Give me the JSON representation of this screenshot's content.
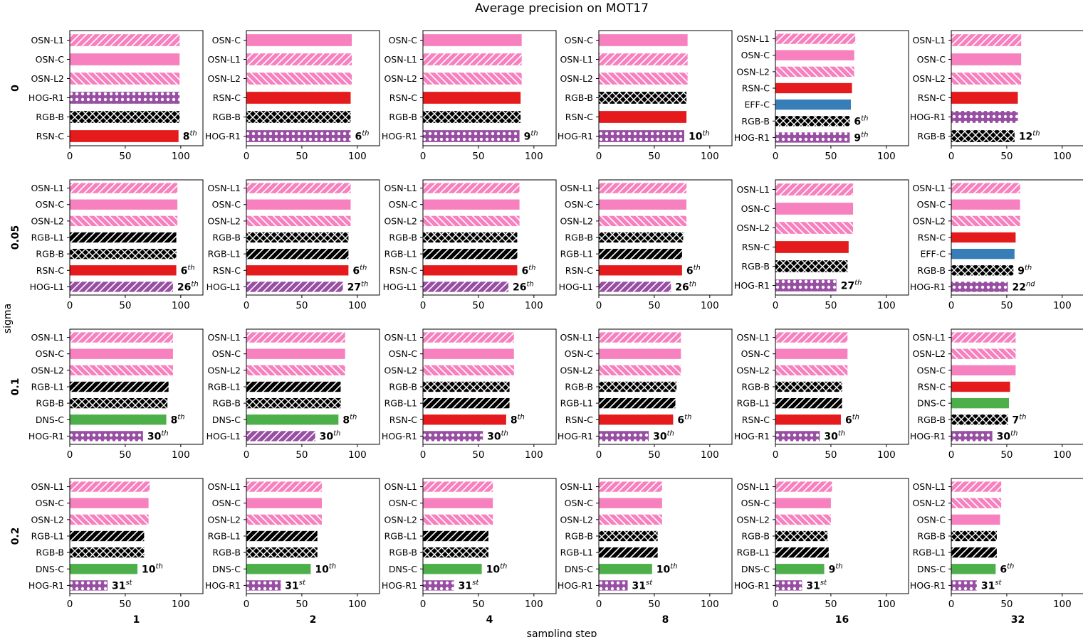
{
  "title": "Average precision on MOT17",
  "xlabel": "sampling step",
  "ylabel": "sigma",
  "colors": {
    "OSN": "#f781bf",
    "RSN": "#e41a1c",
    "EFF": "#377eb8",
    "DNS": "#4daf4a",
    "RGB": "#000000",
    "HOG": "#984ea3"
  },
  "chart_data": {
    "type": "bar",
    "orientation": "horizontal",
    "grid": false,
    "xlim": [
      0,
      120
    ],
    "xticks": [
      0,
      50,
      100
    ],
    "columns": [
      "1",
      "2",
      "4",
      "8",
      "16",
      "32"
    ],
    "rows": [
      "0",
      "0.05",
      "0.1",
      "0.2"
    ],
    "panels": [
      [
        {
          "labels": [
            "OSN-L1",
            "OSN-C",
            "OSN-L2",
            "HOG-R1",
            "RGB-B",
            "RSN-C"
          ],
          "values": [
            99,
            99,
            99,
            99,
            99,
            98
          ],
          "rank": "8",
          "suffix": "th"
        },
        {
          "labels": [
            "OSN-C",
            "OSN-L1",
            "OSN-L2",
            "RSN-C",
            "RGB-B",
            "HOG-R1"
          ],
          "values": [
            95,
            95,
            95,
            94,
            94,
            94
          ],
          "rank": "6",
          "suffix": "th"
        },
        {
          "labels": [
            "OSN-C",
            "OSN-L1",
            "OSN-L2",
            "RSN-C",
            "RGB-B",
            "HOG-R1"
          ],
          "values": [
            89,
            89,
            89,
            88,
            88,
            87
          ],
          "rank": "9",
          "suffix": "th"
        },
        {
          "labels": [
            "OSN-C",
            "OSN-L1",
            "OSN-L2",
            "RGB-B",
            "RSN-C",
            "HOG-R1"
          ],
          "values": [
            80,
            80,
            80,
            79,
            79,
            77
          ],
          "rank": "10",
          "suffix": "th"
        },
        {
          "labels": [
            "OSN-L1",
            "OSN-C",
            "OSN-L2",
            "RSN-C",
            "EFF-C",
            "RGB-B",
            "HOG-R1"
          ],
          "values": [
            72,
            71,
            71,
            69,
            68,
            67,
            67
          ],
          "rank": "9",
          "suffix": "th",
          "extra": {
            "index": 5,
            "rank": "6",
            "suffix": "th"
          }
        },
        {
          "labels": [
            "OSN-L1",
            "OSN-C",
            "OSN-L2",
            "RSN-C",
            "HOG-R1",
            "RGB-B"
          ],
          "values": [
            63,
            63,
            63,
            60,
            60,
            57
          ],
          "rank": "12",
          "suffix": "th"
        }
      ],
      [
        {
          "labels": [
            "OSN-L1",
            "OSN-C",
            "OSN-L2",
            "RGB-L1",
            "RGB-B",
            "RSN-C",
            "HOG-L1"
          ],
          "values": [
            97,
            97,
            97,
            96,
            96,
            96,
            93
          ],
          "rank": "26",
          "suffix": "th",
          "extra": {
            "index": 5,
            "rank": "6",
            "suffix": "th"
          }
        },
        {
          "labels": [
            "OSN-L1",
            "OSN-C",
            "OSN-L2",
            "RGB-B",
            "RGB-L1",
            "RSN-C",
            "HOG-L1"
          ],
          "values": [
            94,
            94,
            94,
            92,
            92,
            92,
            87
          ],
          "rank": "27",
          "suffix": "th",
          "extra": {
            "index": 5,
            "rank": "6",
            "suffix": "th"
          }
        },
        {
          "labels": [
            "OSN-L1",
            "OSN-C",
            "OSN-L2",
            "RGB-B",
            "RGB-L1",
            "RSN-C",
            "HOG-L1"
          ],
          "values": [
            87,
            87,
            87,
            85,
            85,
            85,
            77
          ],
          "rank": "26",
          "suffix": "th",
          "extra": {
            "index": 5,
            "rank": "6",
            "suffix": "th"
          }
        },
        {
          "labels": [
            "OSN-L1",
            "OSN-C",
            "OSN-L2",
            "RGB-B",
            "RGB-L1",
            "RSN-C",
            "HOG-L1"
          ],
          "values": [
            79,
            79,
            79,
            76,
            75,
            75,
            65
          ],
          "rank": "26",
          "suffix": "th",
          "extra": {
            "index": 5,
            "rank": "6",
            "suffix": "th"
          }
        },
        {
          "labels": [
            "OSN-L1",
            "OSN-C",
            "OSN-L2",
            "RSN-C",
            "RGB-B",
            "HOG-R1"
          ],
          "values": [
            70,
            70,
            70,
            66,
            65,
            55
          ],
          "rank": "27",
          "suffix": "th"
        },
        {
          "labels": [
            "OSN-L1",
            "OSN-C",
            "OSN-L2",
            "RSN-C",
            "EFF-C",
            "RGB-B",
            "HOG-R1"
          ],
          "values": [
            62,
            62,
            62,
            58,
            57,
            56,
            51
          ],
          "rank": "22",
          "suffix": "nd",
          "extra": {
            "index": 5,
            "rank": "9",
            "suffix": "th"
          }
        }
      ],
      [
        {
          "labels": [
            "OSN-L1",
            "OSN-C",
            "OSN-L2",
            "RGB-L1",
            "RGB-B",
            "DNS-C",
            "HOG-R1"
          ],
          "values": [
            93,
            93,
            93,
            89,
            88,
            87,
            66
          ],
          "rank": "30",
          "suffix": "th",
          "extra": {
            "index": 5,
            "rank": "8",
            "suffix": "th"
          }
        },
        {
          "labels": [
            "OSN-L1",
            "OSN-C",
            "OSN-L2",
            "RGB-L1",
            "RGB-B",
            "DNS-C",
            "HOG-L1"
          ],
          "values": [
            89,
            89,
            89,
            85,
            85,
            83,
            62
          ],
          "rank": "30",
          "suffix": "th",
          "extra": {
            "index": 5,
            "rank": "8",
            "suffix": "th"
          }
        },
        {
          "labels": [
            "OSN-L1",
            "OSN-C",
            "OSN-L2",
            "RGB-B",
            "RGB-L1",
            "RSN-C",
            "HOG-R1"
          ],
          "values": [
            82,
            82,
            82,
            78,
            78,
            75,
            54
          ],
          "rank": "30",
          "suffix": "th",
          "extra": {
            "index": 5,
            "rank": "8",
            "suffix": "th"
          }
        },
        {
          "labels": [
            "OSN-L1",
            "OSN-C",
            "OSN-L2",
            "RGB-B",
            "RGB-L1",
            "RSN-C",
            "HOG-R1"
          ],
          "values": [
            74,
            74,
            74,
            70,
            69,
            67,
            45
          ],
          "rank": "30",
          "suffix": "th",
          "extra": {
            "index": 5,
            "rank": "6",
            "suffix": "th"
          }
        },
        {
          "labels": [
            "OSN-L1",
            "OSN-C",
            "OSN-L2",
            "RGB-B",
            "RGB-L1",
            "RSN-C",
            "HOG-R1"
          ],
          "values": [
            65,
            65,
            65,
            60,
            60,
            59,
            40
          ],
          "rank": "30",
          "suffix": "th",
          "extra": {
            "index": 5,
            "rank": "6",
            "suffix": "th"
          }
        },
        {
          "labels": [
            "OSN-L1",
            "OSN-L2",
            "OSN-C",
            "RSN-C",
            "DNS-C",
            "RGB-B",
            "HOG-R1"
          ],
          "values": [
            58,
            58,
            58,
            53,
            52,
            51,
            37
          ],
          "rank": "30",
          "suffix": "th",
          "extra": {
            "index": 5,
            "rank": "7",
            "suffix": "th"
          }
        }
      ],
      [
        {
          "labels": [
            "OSN-L1",
            "OSN-C",
            "OSN-L2",
            "RGB-L1",
            "RGB-B",
            "DNS-C",
            "HOG-R1"
          ],
          "values": [
            72,
            71,
            71,
            67,
            67,
            61,
            34
          ],
          "rank": "31",
          "suffix": "st",
          "extra": {
            "index": 5,
            "rank": "10",
            "suffix": "th"
          }
        },
        {
          "labels": [
            "OSN-L1",
            "OSN-C",
            "OSN-L2",
            "RGB-L1",
            "RGB-B",
            "DNS-C",
            "HOG-R1"
          ],
          "values": [
            68,
            68,
            68,
            64,
            64,
            58,
            31
          ],
          "rank": "31",
          "suffix": "st",
          "extra": {
            "index": 5,
            "rank": "10",
            "suffix": "th"
          }
        },
        {
          "labels": [
            "OSN-L1",
            "OSN-C",
            "OSN-L2",
            "RGB-L1",
            "RGB-B",
            "DNS-C",
            "HOG-R1"
          ],
          "values": [
            63,
            63,
            63,
            59,
            59,
            53,
            28
          ],
          "rank": "31",
          "suffix": "st",
          "extra": {
            "index": 5,
            "rank": "10",
            "suffix": "th"
          }
        },
        {
          "labels": [
            "OSN-L1",
            "OSN-C",
            "OSN-L2",
            "RGB-B",
            "RGB-L1",
            "DNS-C",
            "HOG-R1"
          ],
          "values": [
            57,
            57,
            57,
            53,
            53,
            48,
            26
          ],
          "rank": "31",
          "suffix": "st",
          "extra": {
            "index": 5,
            "rank": "10",
            "suffix": "th"
          }
        },
        {
          "labels": [
            "OSN-L1",
            "OSN-C",
            "OSN-L2",
            "RGB-B",
            "RGB-L1",
            "DNS-C",
            "HOG-R1"
          ],
          "values": [
            51,
            50,
            50,
            47,
            48,
            44,
            24
          ],
          "rank": "31",
          "suffix": "st",
          "extra": {
            "index": 5,
            "rank": "9",
            "suffix": "th"
          }
        },
        {
          "labels": [
            "OSN-L1",
            "OSN-L2",
            "OSN-C",
            "RGB-B",
            "RGB-L1",
            "DNS-C",
            "HOG-R1"
          ],
          "values": [
            45,
            45,
            44,
            41,
            41,
            40,
            23
          ],
          "rank": "31",
          "suffix": "st",
          "extra": {
            "index": 5,
            "rank": "6",
            "suffix": "th"
          }
        }
      ]
    ]
  }
}
